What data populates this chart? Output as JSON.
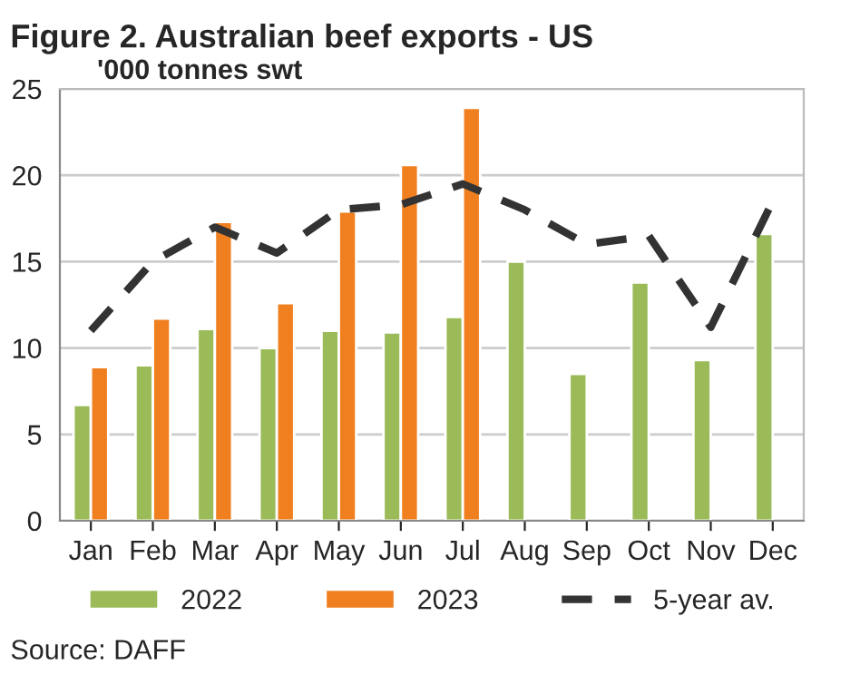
{
  "chart_data": {
    "type": "bar",
    "title": "Figure 2. Australian beef exports - US",
    "ylabel": "'000 tonnes swt",
    "categories": [
      "Jan",
      "Feb",
      "Mar",
      "Apr",
      "May",
      "Jun",
      "Jul",
      "Aug",
      "Sep",
      "Oct",
      "Nov",
      "Dec"
    ],
    "series": [
      {
        "name": "2022",
        "color": "#9bbb59",
        "values": [
          6.7,
          9.0,
          11.1,
          10.0,
          11.0,
          10.9,
          11.8,
          15.0,
          8.5,
          13.8,
          9.3,
          16.6
        ]
      },
      {
        "name": "2023",
        "color": "#f07f20",
        "values": [
          8.9,
          11.7,
          17.3,
          12.6,
          17.9,
          20.6,
          23.9,
          null,
          null,
          null,
          null,
          null
        ]
      },
      {
        "name": "5-year av.",
        "type": "line",
        "line_style": "dashed",
        "color": "#333333",
        "values": [
          11.0,
          15.0,
          17.0,
          15.5,
          18.0,
          18.3,
          19.5,
          18.0,
          16.0,
          16.5,
          11.2,
          18.5
        ]
      }
    ],
    "ylim": [
      0,
      25
    ],
    "yticks": [
      0,
      5,
      10,
      15,
      20,
      25
    ],
    "grid": "y",
    "legend": "bottom",
    "annotations": [
      "Source: DAFF"
    ]
  }
}
